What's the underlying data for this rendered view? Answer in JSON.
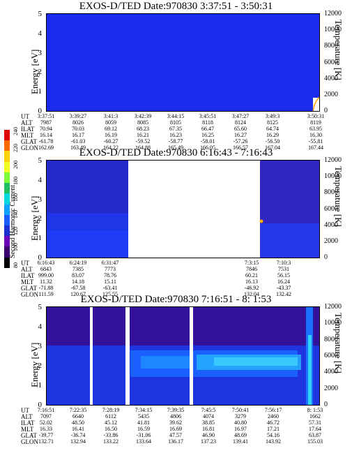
{
  "colorbar": {
    "label": "Second Harmonic Current",
    "ticks": [
      "80",
      "100",
      "120",
      "140",
      "160",
      "180",
      "200",
      "220",
      "240"
    ],
    "colors": [
      "#000000",
      "#3b006b",
      "#6c00b8",
      "#1c2fd0",
      "#1a5cff",
      "#10a0ff",
      "#00d8e0",
      "#20c060",
      "#7cff3a",
      "#f0ff20",
      "#ffd000",
      "#ff6a00",
      "#e00000"
    ]
  },
  "chart_data": [
    {
      "type": "heatmap",
      "title": "EXOS-D/TED   Date:970830  3:37:51 - 3:50:31",
      "ylabel": "Energy [eV]",
      "y2label": "Temperature [K]",
      "ylim": [
        0,
        5
      ],
      "y2lim": [
        0,
        12000
      ],
      "yticks": [
        "0",
        "1",
        "2",
        "3",
        "4",
        "5"
      ],
      "y2ticks": [
        "0",
        "2000",
        "4000",
        "6000",
        "8000",
        "10000",
        "12000"
      ],
      "ephemeris": {
        "labels": [
          "UT",
          "ALT",
          "ILAT",
          "MLT",
          "GLAT",
          "GLON"
        ],
        "columns": [
          [
            "3:37:51",
            "7987",
            "70.94",
            "16.14",
            "-61.78",
            "162.69"
          ],
          [
            "3:39:27",
            "8026",
            "70.03",
            "16.17",
            "-61.03",
            "163.49"
          ],
          [
            "3:41:3",
            "8059",
            "69.12",
            "16.19",
            "-60.27",
            "164.22"
          ],
          [
            "3:42:39",
            "8085",
            "68.23",
            "16.21",
            "-59.52",
            "164.88"
          ],
          [
            "3:44:15",
            "8105",
            "67.35",
            "16.23",
            "-58.77",
            "165.49"
          ],
          [
            "3:45:51",
            "8118",
            "66.47",
            "16.25",
            "-58.01",
            "166.05"
          ],
          [
            "3:47:27",
            "8124",
            "65.60",
            "16.27",
            "-57.26",
            "166.57"
          ],
          [
            "3:49:3",
            "8125",
            "64.74",
            "16.29",
            "-56.50",
            "167.04"
          ],
          [
            "3:50:31",
            "8119",
            "63.95",
            "16.30",
            "-55.81",
            "167.44"
          ]
        ]
      }
    },
    {
      "type": "heatmap",
      "title": "EXOS-D/TED   Date:970830  6:16:43 - 7:16:43",
      "ylabel": "Energy [eV]",
      "y2label": "Temperature [K]",
      "ylim": [
        0,
        5
      ],
      "y2lim": [
        0,
        12000
      ],
      "yticks": [
        "0",
        "1",
        "2",
        "3",
        "4",
        "5"
      ],
      "y2ticks": [
        "0",
        "2000",
        "4000",
        "6000",
        "8000",
        "10000",
        "12000"
      ],
      "ephemeris": {
        "labels": [
          "UT",
          "ALT",
          "ILAT",
          "MLT",
          "GLAT",
          "GLON"
        ],
        "columns": [
          [
            "6:16:43",
            "6843",
            "999.00",
            "11.32",
            "-71.88",
            "111.59"
          ],
          [
            "6:24:19",
            "7385",
            "83.07",
            "14.18",
            "-67.58",
            "120.67"
          ],
          [
            "6:31:47",
            "7773",
            "78.76",
            "15.11",
            "-63.41",
            "125.55"
          ],
          [
            "7:3:15",
            "7846",
            "60.21",
            "16.13",
            "-46.92",
            "132.04"
          ],
          [
            "7:10:3",
            "7531",
            "56.15",
            "16.24",
            "-43.37",
            "132.42"
          ]
        ]
      }
    },
    {
      "type": "heatmap",
      "title": "EXOS-D/TED   Date:970830  7:16:51 - 8: 1:53",
      "ylabel": "Energy [eV]",
      "y2label": "Temperature [K]",
      "ylim": [
        0,
        5
      ],
      "y2lim": [
        0,
        12000
      ],
      "yticks": [
        "0",
        "1",
        "2",
        "3",
        "4",
        "5"
      ],
      "y2ticks": [
        "0",
        "2000",
        "4000",
        "6000",
        "8000",
        "10000",
        "12000"
      ],
      "ephemeris": {
        "labels": [
          "UT",
          "ALT",
          "ILAT",
          "MLT",
          "GLAT",
          "GLON"
        ],
        "columns": [
          [
            "7:16:51",
            "7097",
            "52.02",
            "16.33",
            "-39.77",
            "132.71"
          ],
          [
            "7:22:35",
            "6640",
            "48.50",
            "16.41",
            "-36.74",
            "132.94"
          ],
          [
            "7:28:19",
            "6112",
            "45.12",
            "16.50",
            "-33.86",
            "133.22"
          ],
          [
            "7:34:15",
            "5435",
            "41.81",
            "16.59",
            "-31.06",
            "133.64"
          ],
          [
            "7:39:35",
            "4806",
            "39.62",
            "16.69",
            "47.57",
            "136.17"
          ],
          [
            "7:45:5",
            "4074",
            "38.85",
            "16.81",
            "46.90",
            "137.23"
          ],
          [
            "7:50:41",
            "3279",
            "40.80",
            "16.97",
            "48.69",
            "139.41"
          ],
          [
            "7:56:17",
            "2460",
            "46.72",
            "17.21",
            "54.16",
            "143.92"
          ],
          [
            "8: 1:53",
            "1662",
            "57.31",
            "17.64",
            "63.87",
            "155.03"
          ]
        ]
      }
    }
  ]
}
